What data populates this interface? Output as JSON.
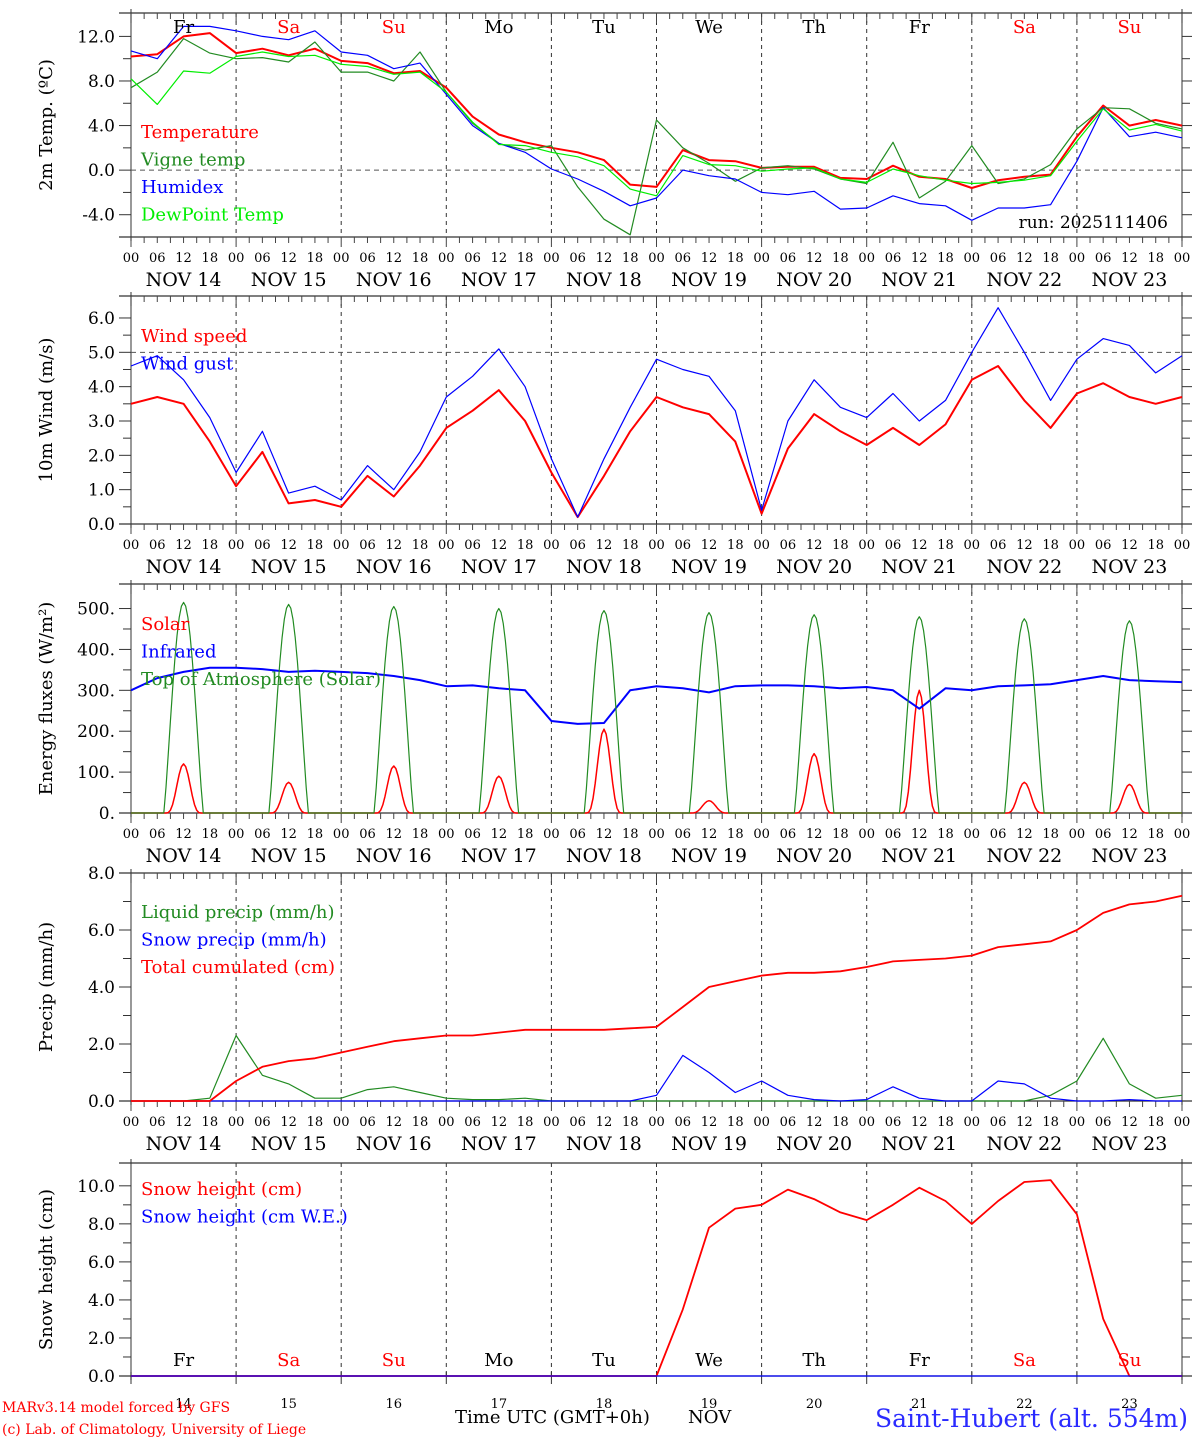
{
  "run_label": "run: 2025111406",
  "footer": {
    "model": "MARv3.14 model forced by GFS",
    "copyright": "(c) Lab. of Climatology, University of Liege",
    "time_axis": "Time UTC (GMT+0h)",
    "month": "NOV",
    "station": "Saint-Hubert (alt. 554m)"
  },
  "days": [
    {
      "abbr": "Fr",
      "weekend": false,
      "date": "NOV 14",
      "num": "14"
    },
    {
      "abbr": "Sa",
      "weekend": true,
      "date": "NOV 15",
      "num": "15"
    },
    {
      "abbr": "Su",
      "weekend": true,
      "date": "NOV 16",
      "num": "16"
    },
    {
      "abbr": "Mo",
      "weekend": false,
      "date": "NOV 17",
      "num": "17"
    },
    {
      "abbr": "Tu",
      "weekend": false,
      "date": "NOV 18",
      "num": "18"
    },
    {
      "abbr": "We",
      "weekend": false,
      "date": "NOV 19",
      "num": "19"
    },
    {
      "abbr": "Th",
      "weekend": false,
      "date": "NOV 20",
      "num": "20"
    },
    {
      "abbr": "Fr",
      "weekend": false,
      "date": "NOV 21",
      "num": "21"
    },
    {
      "abbr": "Sa",
      "weekend": true,
      "date": "NOV 22",
      "num": "22"
    },
    {
      "abbr": "Su",
      "weekend": true,
      "date": "NOV 23",
      "num": "23"
    }
  ],
  "hour_ticks": [
    "00",
    "06",
    "12",
    "18"
  ],
  "final_hour_tick": "00",
  "colors": {
    "red": "#ff0000",
    "green": "#228b22",
    "blue": "#0000ff",
    "lime": "#00ee00",
    "axis": "#000000",
    "weekend": "#ff0000"
  },
  "chart_data": [
    {
      "type": "line",
      "ylabel": "2m Temp. (ºC)",
      "ylim": [
        -6.0,
        14.1
      ],
      "yticks": [
        -4.0,
        0.0,
        4.0,
        8.0,
        12.0
      ],
      "ytick_labels": [
        "-4.0",
        "0.0",
        "4.0",
        "8.0",
        "12.0"
      ],
      "reference_line": 0.0,
      "x_hours": "6-hourly from NOV 14 00 UTC",
      "series": [
        {
          "name": "Temperature",
          "color": "#ff0000",
          "width": 2,
          "values": [
            10.2,
            10.4,
            12.0,
            12.3,
            10.5,
            10.9,
            10.3,
            10.9,
            9.8,
            9.6,
            8.7,
            8.9,
            7.4,
            4.8,
            3.2,
            2.5,
            2.0,
            1.6,
            0.9,
            -1.3,
            -1.5,
            1.8,
            0.9,
            0.8,
            0.2,
            0.3,
            0.3,
            -0.7,
            -0.8,
            0.4,
            -0.6,
            -0.8,
            -1.6,
            -0.9,
            -0.6,
            -0.4,
            3.0,
            5.8,
            4.0,
            4.5,
            4.0
          ]
        },
        {
          "name": "Vigne temp",
          "color": "#228b22",
          "width": 1.2,
          "values": [
            7.4,
            8.8,
            11.8,
            10.5,
            10.0,
            10.1,
            9.7,
            11.5,
            8.8,
            8.8,
            8.0,
            10.6,
            7.0,
            4.2,
            2.4,
            1.8,
            2.2,
            -1.5,
            -4.4,
            -5.8,
            4.5,
            2.0,
            0.6,
            -1.0,
            0.2,
            0.4,
            0.1,
            -0.8,
            -1.2,
            2.5,
            -2.5,
            -1.0,
            2.2,
            -1.2,
            -0.8,
            0.5,
            3.7,
            5.6,
            5.5,
            4.2,
            3.7
          ]
        },
        {
          "name": "Humidex",
          "color": "#0000ff",
          "width": 1.2,
          "values": [
            10.7,
            10.0,
            12.9,
            12.9,
            12.5,
            12.0,
            11.7,
            12.5,
            10.6,
            10.3,
            9.1,
            9.6,
            6.8,
            4.0,
            2.4,
            1.6,
            0.1,
            -0.8,
            -1.9,
            -3.2,
            -2.5,
            0.0,
            -0.5,
            -0.8,
            -2.0,
            -2.2,
            -1.9,
            -3.5,
            -3.4,
            -2.3,
            -3.0,
            -3.2,
            -4.5,
            -3.4,
            -3.4,
            -3.1,
            0.8,
            5.6,
            3.0,
            3.4,
            2.9
          ]
        },
        {
          "name": "DewPoint Temp",
          "color": "#00ee00",
          "width": 1.2,
          "values": [
            8.2,
            5.9,
            8.9,
            8.7,
            10.2,
            10.6,
            10.2,
            10.3,
            9.5,
            9.3,
            8.6,
            8.8,
            7.0,
            4.3,
            2.3,
            2.2,
            1.6,
            1.2,
            0.4,
            -1.7,
            -2.3,
            1.3,
            0.5,
            0.4,
            -0.1,
            0.1,
            0.2,
            -0.8,
            -1.1,
            0.1,
            -0.5,
            -0.9,
            -1.2,
            -1.1,
            -0.9,
            -0.5,
            2.6,
            5.5,
            3.6,
            4.1,
            3.5
          ]
        }
      ]
    },
    {
      "type": "line",
      "ylabel": "10m Wind (m/s)",
      "ylim": [
        0.0,
        6.64
      ],
      "yticks": [
        0.0,
        1.0,
        2.0,
        3.0,
        4.0,
        5.0,
        6.0
      ],
      "ytick_labels": [
        "0.0",
        "1.0",
        "2.0",
        "3.0",
        "4.0",
        "5.0",
        "6.0"
      ],
      "reference_line": 5.0,
      "series": [
        {
          "name": "Wind speed",
          "color": "#ff0000",
          "width": 2,
          "values": [
            3.5,
            3.7,
            3.5,
            2.4,
            1.1,
            2.1,
            0.6,
            0.7,
            0.5,
            1.4,
            0.8,
            1.7,
            2.8,
            3.3,
            3.9,
            3.0,
            1.5,
            0.2,
            1.4,
            2.7,
            3.7,
            3.4,
            3.2,
            2.4,
            0.3,
            2.2,
            3.2,
            2.7,
            2.3,
            2.8,
            2.3,
            2.9,
            4.2,
            4.6,
            3.6,
            2.8,
            3.8,
            4.1,
            3.7,
            3.5,
            3.7
          ]
        },
        {
          "name": "Wind gust",
          "color": "#0000ff",
          "width": 1.2,
          "values": [
            4.6,
            4.9,
            4.2,
            3.1,
            1.5,
            2.7,
            0.9,
            1.1,
            0.7,
            1.7,
            1.0,
            2.1,
            3.7,
            4.3,
            5.1,
            4.0,
            1.9,
            0.2,
            1.9,
            3.4,
            4.8,
            4.5,
            4.3,
            3.3,
            0.4,
            3.0,
            4.2,
            3.4,
            3.1,
            3.8,
            3.0,
            3.6,
            5.0,
            6.3,
            5.0,
            3.6,
            4.8,
            5.4,
            5.2,
            4.4,
            4.9
          ]
        }
      ]
    },
    {
      "type": "line",
      "ylabel": "Energy fluxes (W/m²)",
      "ylim": [
        0,
        560
      ],
      "yticks": [
        0,
        100,
        200,
        300,
        400,
        500
      ],
      "ytick_labels": [
        "0.",
        "100.",
        "200.",
        "300.",
        "400.",
        "500."
      ],
      "series": [
        {
          "name": "Solar",
          "color": "#ff0000",
          "width": 1.5,
          "daily_peak": [
            120,
            75,
            115,
            90,
            205,
            30,
            145,
            300,
            75,
            70
          ]
        },
        {
          "name": "Infrared",
          "color": "#0000ff",
          "width": 2,
          "values": [
            300,
            330,
            345,
            355,
            355,
            352,
            345,
            348,
            345,
            342,
            335,
            325,
            310,
            312,
            305,
            300,
            225,
            218,
            220,
            300,
            310,
            305,
            295,
            310,
            312,
            312,
            310,
            305,
            308,
            300,
            255,
            305,
            300,
            310,
            312,
            315,
            325,
            335,
            325,
            322,
            320
          ]
        },
        {
          "name": "Top of Atmosphere (Solar)",
          "color": "#228b22",
          "width": 1.2,
          "daily_peak": [
            515,
            510,
            505,
            500,
            495,
            490,
            485,
            480,
            475,
            470
          ]
        }
      ]
    },
    {
      "type": "line",
      "ylabel": "Precip (mm/h)",
      "ylim": [
        0.0,
        8.0
      ],
      "yticks": [
        0.0,
        2.0,
        4.0,
        6.0,
        8.0
      ],
      "ytick_labels": [
        "0.0",
        "2.0",
        "4.0",
        "6.0",
        "8.0"
      ],
      "series": [
        {
          "name": "Liquid precip (mm/h)",
          "color": "#228b22",
          "width": 1.2,
          "values": [
            0,
            0,
            0,
            0.1,
            2.3,
            0.9,
            0.6,
            0.1,
            0.1,
            0.4,
            0.5,
            0.3,
            0.1,
            0.05,
            0.05,
            0.1,
            0,
            0,
            0,
            0,
            0,
            0,
            0,
            0,
            0,
            0,
            0,
            0,
            0,
            0,
            0,
            0,
            0,
            0,
            0,
            0.2,
            0.7,
            2.2,
            0.6,
            0.1,
            0.2
          ]
        },
        {
          "name": "Snow precip (mm/h)",
          "color": "#0000ff",
          "width": 1.2,
          "values": [
            0,
            0,
            0,
            0,
            0,
            0,
            0,
            0,
            0,
            0,
            0,
            0,
            0,
            0,
            0,
            0,
            0,
            0,
            0,
            0,
            0.2,
            1.6,
            1.0,
            0.3,
            0.7,
            0.2,
            0.05,
            0,
            0.05,
            0.5,
            0.1,
            0,
            0,
            0.7,
            0.6,
            0.1,
            0,
            0,
            0.05,
            0,
            0
          ]
        },
        {
          "name": "Total cumulated (cm)",
          "color": "#ff0000",
          "width": 1.8,
          "values": [
            0,
            0,
            0,
            0,
            0.7,
            1.2,
            1.4,
            1.5,
            1.7,
            1.9,
            2.1,
            2.2,
            2.3,
            2.3,
            2.4,
            2.5,
            2.5,
            2.5,
            2.5,
            2.55,
            2.6,
            3.3,
            4.0,
            4.2,
            4.4,
            4.5,
            4.5,
            4.55,
            4.7,
            4.9,
            4.95,
            5.0,
            5.1,
            5.4,
            5.5,
            5.6,
            6.0,
            6.6,
            6.9,
            7.0,
            7.2
          ]
        }
      ]
    },
    {
      "type": "line",
      "ylabel": "Snow height (cm)",
      "ylim": [
        0.0,
        11.2
      ],
      "yticks": [
        0.0,
        2.0,
        4.0,
        6.0,
        8.0,
        10.0
      ],
      "ytick_labels": [
        "0.0",
        "2.0",
        "4.0",
        "6.0",
        "8.0",
        "10.0"
      ],
      "series": [
        {
          "name": "Snow height (cm)",
          "color": "#ff0000",
          "width": 1.8,
          "values": [
            0,
            0,
            0,
            0,
            0,
            0,
            0,
            0,
            0,
            0,
            0,
            0,
            0,
            0,
            0,
            0,
            0,
            0,
            0,
            0,
            0,
            3.5,
            7.8,
            8.8,
            9.0,
            9.8,
            9.3,
            8.6,
            8.2,
            9.0,
            9.9,
            9.2,
            8.0,
            9.2,
            10.2,
            10.3,
            8.5,
            3.0,
            0,
            0,
            0
          ]
        },
        {
          "name": "Snow height (cm W.E.)",
          "color": "#0000ff",
          "width": 1.2,
          "values": [
            0,
            0,
            0,
            0,
            0,
            0,
            0,
            0,
            0,
            0,
            0,
            0,
            0,
            0,
            0,
            0,
            0,
            0,
            0,
            0,
            0,
            0,
            0,
            0,
            0,
            0,
            0,
            0,
            0,
            0,
            0,
            0,
            0,
            0,
            0,
            0,
            0,
            0,
            0,
            0,
            0
          ]
        }
      ]
    }
  ]
}
